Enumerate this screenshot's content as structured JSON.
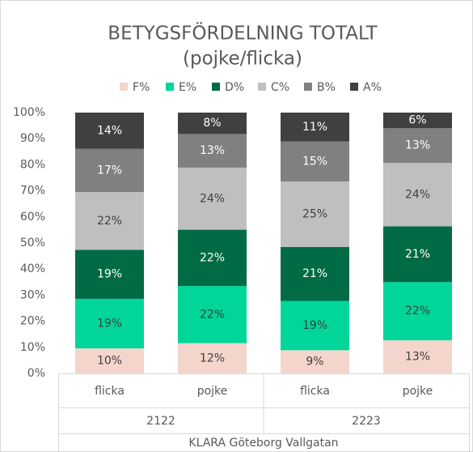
{
  "chart_data": {
    "type": "stacked_bar_100",
    "title": "BETYGSFÖRDELNING TOTALT",
    "subtitle": "(pojke/flicka)",
    "categories": [
      "flicka",
      "pojke",
      "flicka",
      "pojke"
    ],
    "category_groups": [
      "2122",
      "2223"
    ],
    "category_supergroup": "KLARA Göteborg Vallgatan",
    "ylim": [
      0,
      100
    ],
    "yticks": [
      {
        "value": 0,
        "label": "0%"
      },
      {
        "value": 10,
        "label": "10%"
      },
      {
        "value": 20,
        "label": "20%"
      },
      {
        "value": 30,
        "label": "30%"
      },
      {
        "value": 40,
        "label": "40%"
      },
      {
        "value": 50,
        "label": "50%"
      },
      {
        "value": 60,
        "label": "60%"
      },
      {
        "value": 70,
        "label": "70%"
      },
      {
        "value": 80,
        "label": "80%"
      },
      {
        "value": 90,
        "label": "90%"
      },
      {
        "value": 100,
        "label": "100%"
      }
    ],
    "legend": "top",
    "series": [
      {
        "name": "F%",
        "color": "#f4d5cc",
        "values": [
          9.6,
          11.6,
          8.9,
          12.7
        ],
        "value_labels": [
          "10%",
          "12%",
          "9%",
          "13%"
        ]
      },
      {
        "name": "E%",
        "color": "#00d69a",
        "values": [
          19.0,
          21.9,
          18.9,
          22.3
        ],
        "value_labels": [
          "19%",
          "22%",
          "19%",
          "22%"
        ]
      },
      {
        "name": "D%",
        "color": "#006b45",
        "values": [
          18.8,
          21.6,
          20.7,
          21.4
        ],
        "value_labels": [
          "19%",
          "22%",
          "21%",
          "21%"
        ]
      },
      {
        "name": "C%",
        "color": "#bfbfbf",
        "values": [
          22.1,
          23.8,
          25.1,
          24.3
        ],
        "value_labels": [
          "22%",
          "24%",
          "25%",
          "24%"
        ]
      },
      {
        "name": "B%",
        "color": "#808080",
        "values": [
          16.6,
          12.9,
          15.3,
          13.3
        ],
        "value_labels": [
          "17%",
          "13%",
          "15%",
          "13%"
        ]
      },
      {
        "name": "A%",
        "color": "#404040",
        "values": [
          13.9,
          8.2,
          11.1,
          6.0
        ],
        "value_labels": [
          "14%",
          "8%",
          "11%",
          "6%"
        ]
      }
    ]
  }
}
